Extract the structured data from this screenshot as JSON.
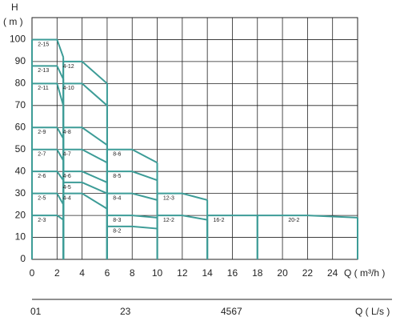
{
  "chart_data": {
    "type": "line",
    "y_title": "H",
    "y_unit": "( m )",
    "x_title": "Q ( m³/h )",
    "xlim": [
      0,
      26
    ],
    "ylim": [
      0,
      110
    ],
    "xticks": [
      0,
      2,
      4,
      6,
      8,
      10,
      12,
      14,
      16,
      18,
      20,
      22,
      24
    ],
    "yticks": [
      0,
      10,
      20,
      30,
      40,
      50,
      60,
      70,
      80,
      90,
      100
    ],
    "grid": true,
    "color": "#3d9c97",
    "series": [
      {
        "name": "2-15",
        "x": [
          0,
          2,
          2.5
        ],
        "values": [
          100,
          100,
          92
        ]
      },
      {
        "name": "2-13",
        "x": [
          0,
          2,
          2.5
        ],
        "values": [
          88,
          88,
          82
        ]
      },
      {
        "name": "2-11",
        "x": [
          0,
          2,
          2.5
        ],
        "values": [
          80,
          80,
          70
        ]
      },
      {
        "name": "2-9",
        "x": [
          0,
          2,
          2.5
        ],
        "values": [
          60,
          60,
          55
        ]
      },
      {
        "name": "2-7",
        "x": [
          0,
          2,
          2.5
        ],
        "values": [
          50,
          50,
          45
        ]
      },
      {
        "name": "2-6",
        "x": [
          0,
          2,
          2.5
        ],
        "values": [
          40,
          40,
          36
        ]
      },
      {
        "name": "2-5",
        "x": [
          0,
          2,
          2.5
        ],
        "values": [
          30,
          30,
          25
        ]
      },
      {
        "name": "2-3",
        "x": [
          0,
          2,
          2.5
        ],
        "values": [
          20,
          20,
          18
        ]
      },
      {
        "name": "4-12",
        "x": [
          2.5,
          4,
          6
        ],
        "values": [
          90,
          90,
          80
        ]
      },
      {
        "name": "4-10",
        "x": [
          2.5,
          4,
          6
        ],
        "values": [
          80,
          80,
          70
        ]
      },
      {
        "name": "4-8",
        "x": [
          2.5,
          4,
          6
        ],
        "values": [
          60,
          60,
          52
        ]
      },
      {
        "name": "4-7",
        "x": [
          2.5,
          4,
          6
        ],
        "values": [
          50,
          50,
          44
        ]
      },
      {
        "name": "4-6",
        "x": [
          2.5,
          4,
          6
        ],
        "values": [
          40,
          40,
          35
        ]
      },
      {
        "name": "4-5",
        "x": [
          2.5,
          4,
          6
        ],
        "values": [
          35,
          35,
          30
        ]
      },
      {
        "name": "4-4",
        "x": [
          2.5,
          4,
          6
        ],
        "values": [
          30,
          30,
          23
        ]
      },
      {
        "name": "8-6",
        "x": [
          6,
          8,
          10
        ],
        "values": [
          50,
          50,
          44
        ]
      },
      {
        "name": "8-5",
        "x": [
          6,
          8,
          10
        ],
        "values": [
          40,
          40,
          36
        ]
      },
      {
        "name": "8-4",
        "x": [
          6,
          8,
          10
        ],
        "values": [
          30,
          30,
          27
        ]
      },
      {
        "name": "8-3",
        "x": [
          6,
          8,
          10
        ],
        "values": [
          20,
          20,
          19
        ]
      },
      {
        "name": "8-2",
        "x": [
          6,
          8,
          10
        ],
        "values": [
          15,
          15,
          14
        ]
      },
      {
        "name": "12-3",
        "x": [
          10,
          12,
          14
        ],
        "values": [
          30,
          30,
          27
        ]
      },
      {
        "name": "12-2",
        "x": [
          10,
          12,
          14
        ],
        "values": [
          20,
          20,
          18
        ]
      },
      {
        "name": "16-2",
        "x": [
          14,
          16,
          18
        ],
        "values": [
          20,
          20,
          20
        ]
      },
      {
        "name": "20-2",
        "x": [
          18,
          22,
          26
        ],
        "values": [
          20,
          20,
          19
        ]
      }
    ],
    "flow_axis": {
      "labels": [
        "01",
        "23",
        "4567"
      ],
      "title": "Q ( L/s )"
    }
  }
}
